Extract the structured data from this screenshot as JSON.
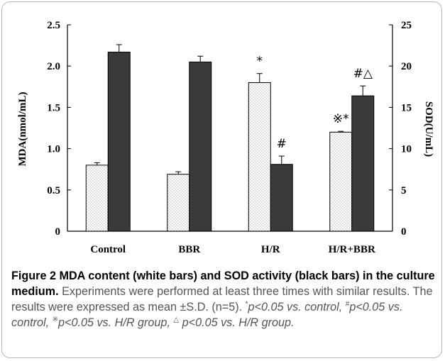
{
  "chart_data": {
    "type": "bar",
    "categories": [
      "Control",
      "BBR",
      "H/R",
      "H/R+BBR"
    ],
    "series": [
      {
        "values": [
          0.8,
          0.69,
          1.8,
          1.2
        ],
        "errors": [
          0.03,
          0.03,
          0.11,
          0.01
        ],
        "fill": "dotted-white",
        "axis": "left"
      },
      {
        "values": [
          21.7,
          20.5,
          8.1,
          16.4
        ],
        "errors": [
          0.9,
          0.7,
          1.0,
          1.2
        ],
        "fill": "#3a3a3a",
        "axis": "right"
      }
    ],
    "ylabel": "MDA(nmol/mL)",
    "y2label": "SOD(U/mL)",
    "ylim": [
      0,
      2.5
    ],
    "y2lim": [
      0,
      25
    ],
    "yticks": [
      "0",
      "0.5",
      "1.0",
      "1.5",
      "2.0",
      "2.5"
    ],
    "y2ticks": [
      "0",
      "5",
      "10",
      "15",
      "20",
      "25"
    ],
    "annotations": [
      {
        "category": "H/R",
        "series": 0,
        "text": "*"
      },
      {
        "category": "H/R",
        "series": 1,
        "text": "#"
      },
      {
        "category": "H/R+BBR",
        "series": 0,
        "text": "※*"
      },
      {
        "category": "H/R+BBR",
        "series": 1,
        "text": "#△"
      }
    ]
  },
  "caption": {
    "figure_label": "Figure 2",
    "title": "MDA content (white bars) and SOD activity (black bars) in the culture medium.",
    "text_1": "Experiments were performed at least three times with similar results. The results were expressed as mean ±S.D. (n=5). ",
    "mark_1": "*",
    "text_2": "p<0.05 vs. control, ",
    "mark_2": "#",
    "text_3": "p<0.05 vs. control, ",
    "mark_3": "※",
    "text_4": "p<0.05 vs. H/R group, ",
    "mark_4": "△",
    "text_5": " p<0.05 vs. H/R group."
  }
}
